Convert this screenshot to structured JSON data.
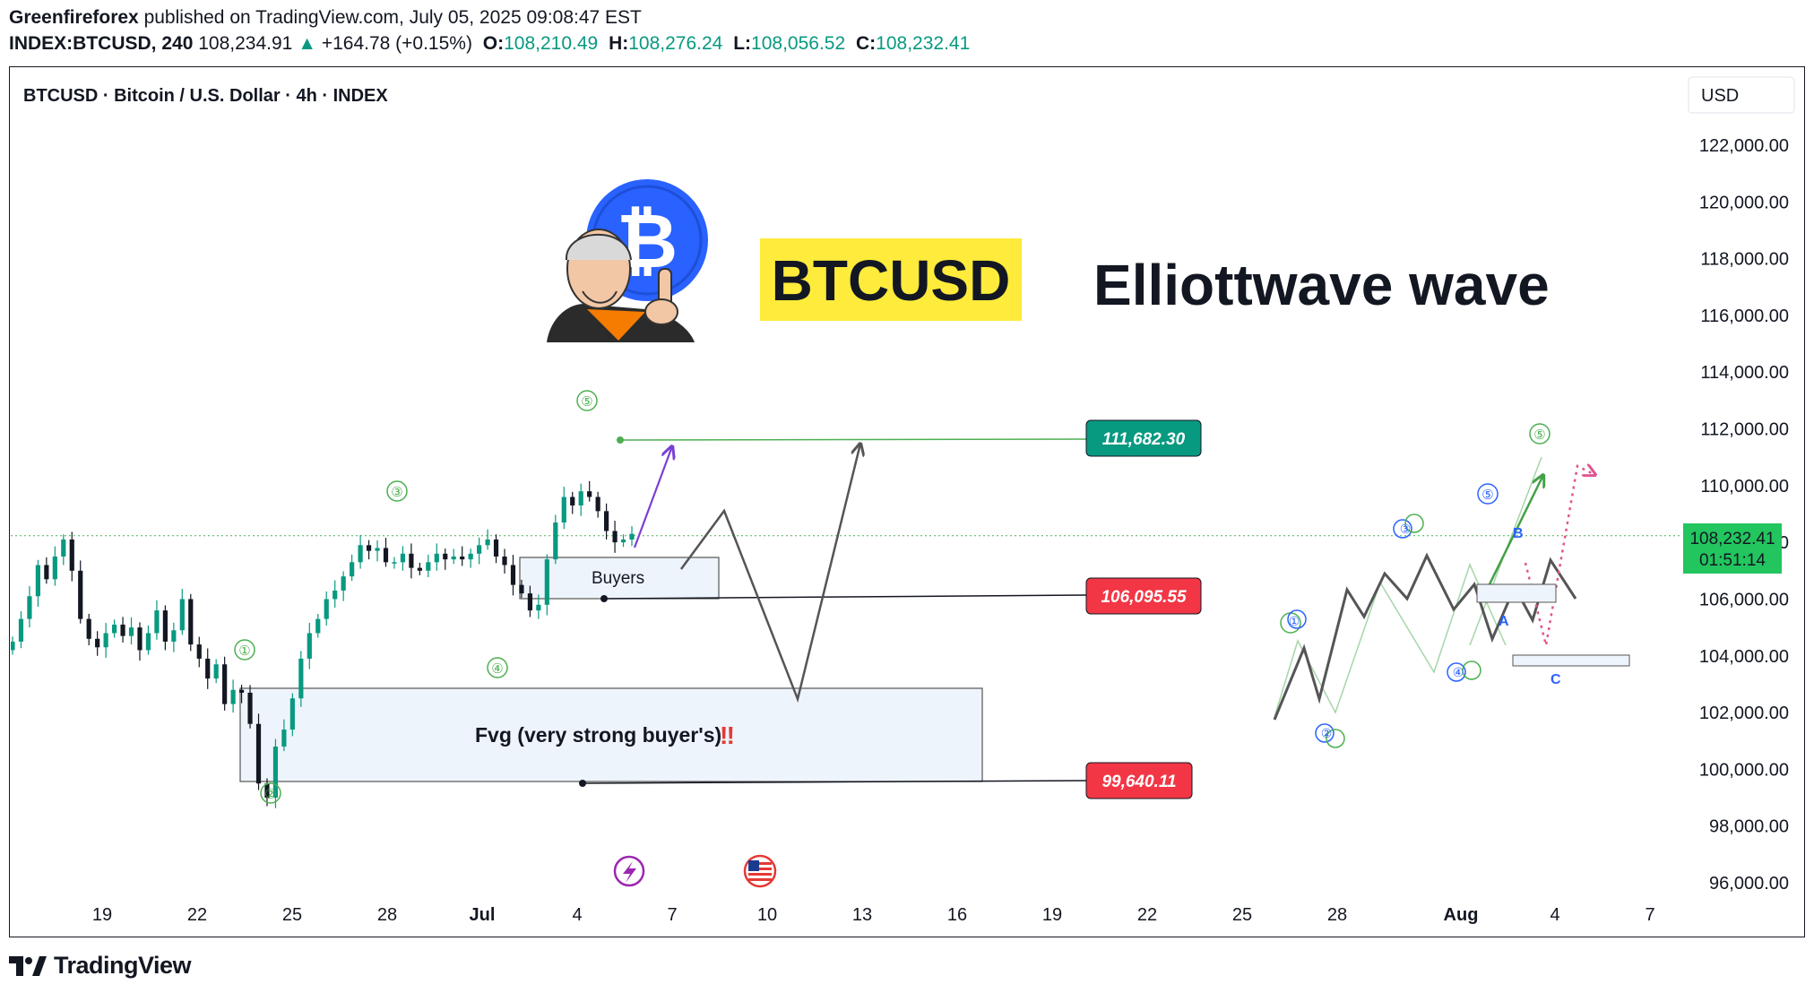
{
  "header": {
    "publisher": "Greenfireforex",
    "published_text": "published on TradingView.com, July 05, 2025 09:08:47 EST",
    "symbol": "INDEX:BTCUSD, 240",
    "last": "108,234.91",
    "change_arrow": "▲",
    "change": "+164.78 (+0.15%)",
    "open_label": "O:",
    "open": "108,210.49",
    "high_label": "H:",
    "high": "108,276.24",
    "low_label": "L:",
    "low": "108,056.52",
    "close_label": "C:",
    "close": "108,232.41"
  },
  "chart_header": {
    "title": "BTCUSD · Bitcoin / U.S. Dollar · 4h · INDEX",
    "currency": "USD"
  },
  "annotations": {
    "symbol_banner": "BTCUSD",
    "headline": "Elliottwave wave",
    "buyers_box": "Buyers",
    "fvg_box": "Fvg (very strong buyer's)",
    "fvg_mark": "‼",
    "bitcoin_symbol": "₿",
    "wave_labels": [
      "①",
      "②",
      "③",
      "④",
      "⑤"
    ],
    "scenario_labels": [
      "A",
      "B",
      "C"
    ]
  },
  "colors": {
    "up": "#089981",
    "down": "#131722",
    "green_line": "#4caf50",
    "red_label": "#f23645",
    "teal_label": "#089981",
    "highlight": "#ffeb3b",
    "bitcoin_blue": "#2962ff",
    "purple": "#7b3fd4",
    "blue_wave": "#2962ff"
  },
  "icons": {
    "event_icon": "lightning-bolt-icon",
    "flag_icon": "us-flag-icon",
    "logo": "tradingview-logo-icon",
    "mascot": "saylor-cartoon-icon"
  },
  "chart_data": {
    "type": "candlestick",
    "title": "BTCUSD · Bitcoin / U.S. Dollar · 4h · INDEX",
    "xlabel": "",
    "ylabel": "",
    "x_ticks": [
      "19",
      "22",
      "25",
      "28",
      "Jul",
      "4",
      "7",
      "10",
      "13",
      "16",
      "19",
      "22",
      "25",
      "28",
      "Aug",
      "4",
      "7"
    ],
    "y_ticks": [
      "122,000.00",
      "120,000.00",
      "118,000.00",
      "116,000.00",
      "114,000.00",
      "112,000.00",
      "110,000.00",
      "108,000.00",
      "106,000.00",
      "104,000.00",
      "102,000.00",
      "100,000.00",
      "98,000.00",
      "96,000.00"
    ],
    "ylim": [
      95500,
      123500
    ],
    "current_price": "108,232.41",
    "countdown": "01:51:14",
    "levels": [
      {
        "value": 111682.3,
        "label": "111,682.30",
        "kind": "target"
      },
      {
        "value": 106095.55,
        "label": "106,095.55",
        "kind": "support"
      },
      {
        "value": 99640.11,
        "label": "99,640.11",
        "kind": "support"
      }
    ],
    "close_series": [
      104500,
      105300,
      106100,
      107200,
      106700,
      107500,
      108100,
      107000,
      105300,
      104600,
      104300,
      104800,
      105100,
      104700,
      105000,
      104200,
      104800,
      105600,
      104500,
      104900,
      106000,
      104400,
      103900,
      103200,
      103700,
      102300,
      102800,
      102700,
      101600,
      99500,
      99000,
      100800,
      101400,
      102500,
      103900,
      104800,
      105300,
      106000,
      106300,
      106800,
      107300,
      107900,
      107700,
      107800,
      107300,
      107300,
      107600,
      107100,
      107000,
      107300,
      107600,
      107400,
      107500,
      107400,
      107600,
      107900,
      108100,
      107500,
      107200,
      106500,
      106200,
      105600,
      105800,
      107400,
      108700,
      109600,
      109300,
      109800,
      109600,
      109100,
      108400,
      108000,
      108100,
      108300
    ]
  }
}
